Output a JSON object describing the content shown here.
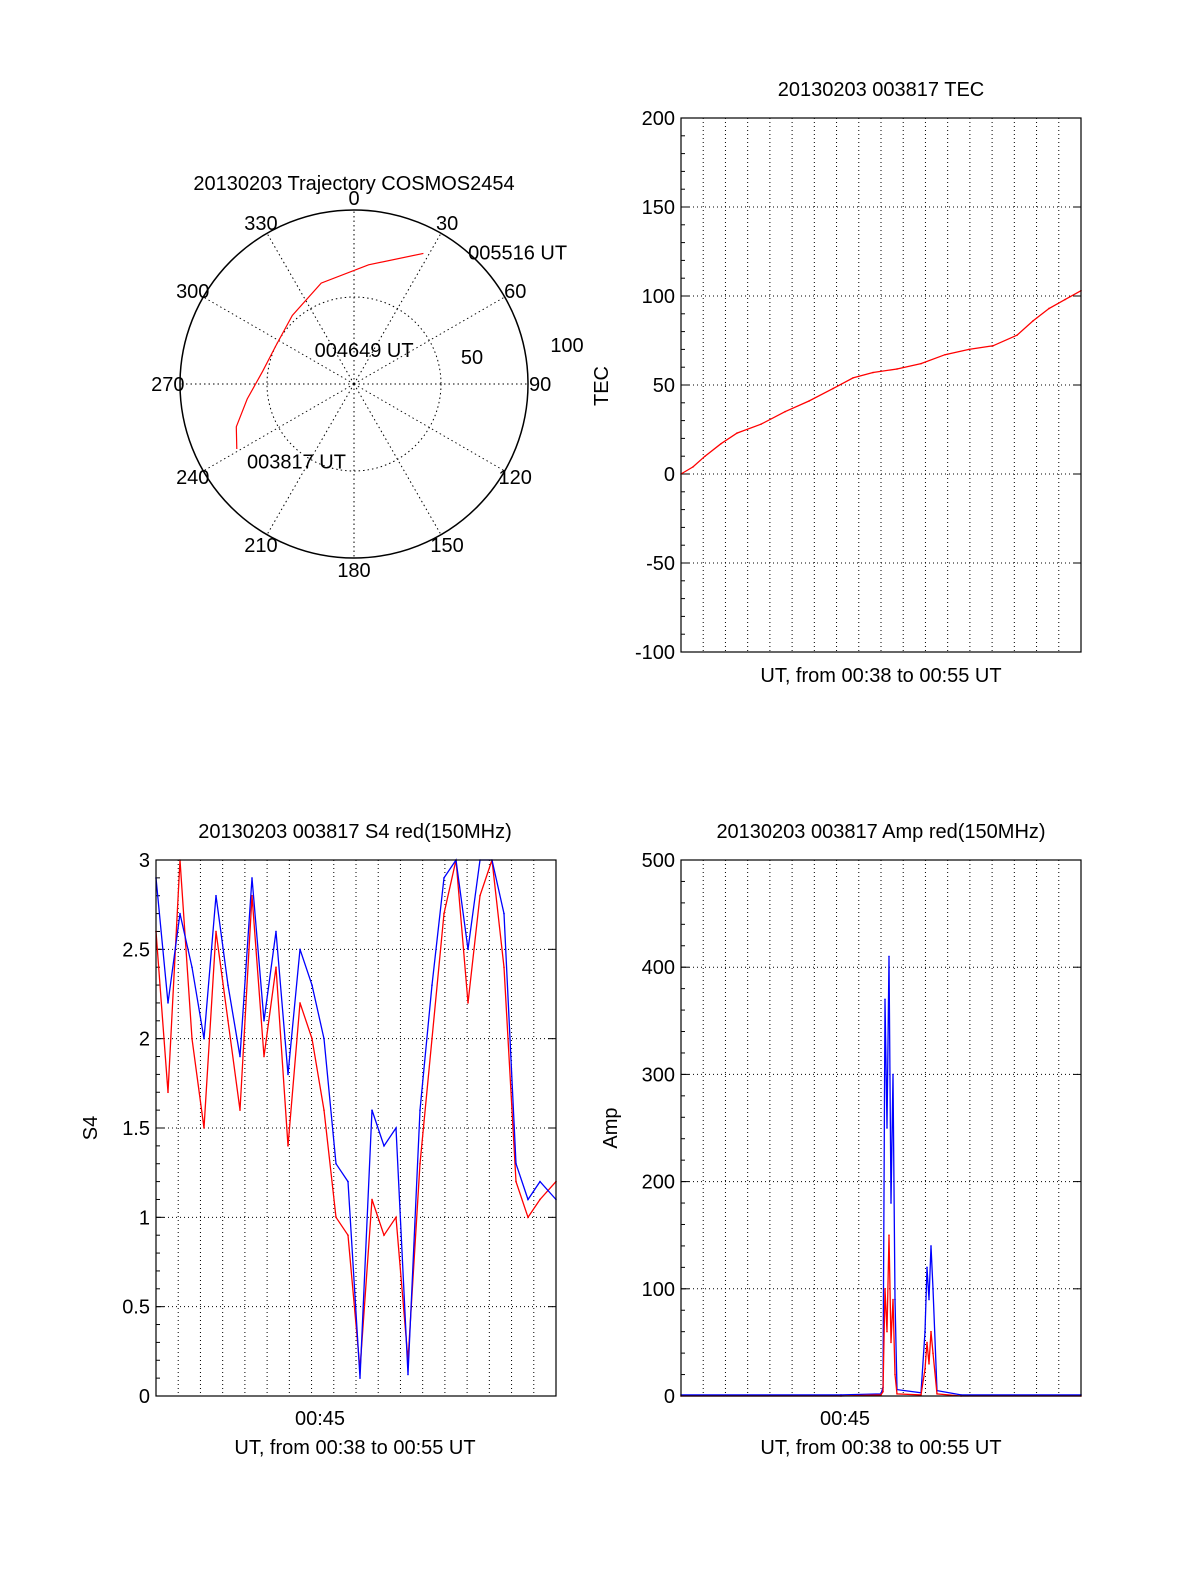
{
  "colors": {
    "red": "#ff0000",
    "blue": "#0000ff",
    "axis": "#000000",
    "grid": "#000000",
    "background": "#ffffff"
  },
  "chart_data": [
    {
      "id": "trajectory",
      "type": "polar",
      "title": "20130203 Trajectory COSMOS2454",
      "angle_labels": [
        "0",
        "30",
        "60",
        "90",
        "120",
        "150",
        "180",
        "210",
        "240",
        "270",
        "300",
        "330"
      ],
      "radial_labels": [
        "50",
        "100"
      ],
      "radial_max": 100,
      "series_color": "red",
      "track": {
        "azimuth_deg": [
          241,
          250,
          262,
          278,
          296,
          318,
          342,
          7,
          28
        ],
        "radius": [
          77,
          72,
          62,
          53,
          50,
          53,
          61,
          69,
          85
        ]
      },
      "annotations": [
        {
          "text": "003817 UT",
          "azimuth_deg": 234,
          "radius": 76
        },
        {
          "text": "004649 UT",
          "azimuth_deg": 311,
          "radius": 30
        },
        {
          "text": "005516 UT",
          "azimuth_deg": 41,
          "radius": 100
        }
      ]
    },
    {
      "id": "tec",
      "type": "line",
      "title": "20130203 003817 TEC",
      "xlabel": "UT, from 00:38 to 00:55 UT",
      "ylabel": "TEC",
      "ylim": [
        -100,
        200
      ],
      "yticks": [
        "-100",
        "-50",
        "0",
        "50",
        "100",
        "150",
        "200"
      ],
      "xticks": [],
      "grid": true,
      "series": [
        {
          "color": "red",
          "x": [
            0,
            0.03,
            0.06,
            0.1,
            0.14,
            0.2,
            0.26,
            0.32,
            0.38,
            0.43,
            0.48,
            0.54,
            0.6,
            0.66,
            0.72,
            0.78,
            0.84,
            0.88,
            0.92,
            0.96,
            1.0
          ],
          "values": [
            0,
            4,
            10,
            17,
            23,
            28,
            35,
            41,
            48,
            54,
            57,
            59,
            62,
            67,
            70,
            72,
            78,
            86,
            93,
            98,
            103
          ]
        }
      ]
    },
    {
      "id": "s4",
      "type": "line",
      "title": "20130203 003817 S4 red(150MHz)",
      "xlabel": "UT, from 00:38 to 00:55 UT",
      "ylabel": "S4",
      "ylim": [
        0,
        3
      ],
      "yticks": [
        "0",
        "0.5",
        "1",
        "1.5",
        "2",
        "2.5",
        "3"
      ],
      "xticks": [
        "00:45"
      ],
      "grid": true,
      "series": [
        {
          "color": "red",
          "x": [
            0,
            0.03,
            0.06,
            0.09,
            0.12,
            0.15,
            0.18,
            0.21,
            0.24,
            0.27,
            0.3,
            0.33,
            0.36,
            0.39,
            0.42,
            0.45,
            0.48,
            0.51,
            0.54,
            0.57,
            0.6,
            0.63,
            0.66,
            0.69,
            0.72,
            0.75,
            0.78,
            0.81,
            0.84,
            0.87,
            0.9,
            0.93,
            0.96,
            1.0
          ],
          "values": [
            2.6,
            1.7,
            3.0,
            2.0,
            1.5,
            2.6,
            2.1,
            1.6,
            2.8,
            1.9,
            2.4,
            1.4,
            2.2,
            2.0,
            1.6,
            1.0,
            0.9,
            0.15,
            1.1,
            0.9,
            1.0,
            0.2,
            1.3,
            2.0,
            2.7,
            3.0,
            2.2,
            2.8,
            3.0,
            2.4,
            1.2,
            1.0,
            1.1,
            1.2
          ]
        },
        {
          "color": "blue",
          "x": [
            0,
            0.03,
            0.06,
            0.09,
            0.12,
            0.15,
            0.18,
            0.21,
            0.24,
            0.27,
            0.3,
            0.33,
            0.36,
            0.39,
            0.42,
            0.45,
            0.48,
            0.51,
            0.54,
            0.57,
            0.6,
            0.63,
            0.66,
            0.69,
            0.72,
            0.75,
            0.78,
            0.81,
            0.84,
            0.87,
            0.9,
            0.93,
            0.96,
            1.0
          ],
          "values": [
            2.9,
            2.2,
            2.7,
            2.4,
            2.0,
            2.8,
            2.3,
            1.9,
            2.9,
            2.1,
            2.6,
            1.8,
            2.5,
            2.3,
            2.0,
            1.3,
            1.2,
            0.1,
            1.6,
            1.4,
            1.5,
            0.12,
            1.6,
            2.3,
            2.9,
            3.0,
            2.5,
            3.0,
            3.0,
            2.7,
            1.3,
            1.1,
            1.2,
            1.1
          ]
        }
      ]
    },
    {
      "id": "amp",
      "type": "line",
      "title": "20130203 003817 Amp red(150MHz)",
      "xlabel": "UT, from 00:38 to 00:55 UT",
      "ylabel": "Amp",
      "ylim": [
        0,
        500
      ],
      "yticks": [
        "0",
        "100",
        "200",
        "300",
        "400",
        "500"
      ],
      "xticks": [
        "00:45"
      ],
      "grid": true,
      "series": [
        {
          "color": "blue",
          "x": [
            0,
            0.4,
            0.5,
            0.505,
            0.51,
            0.515,
            0.52,
            0.525,
            0.53,
            0.535,
            0.54,
            0.6,
            0.61,
            0.615,
            0.62,
            0.625,
            0.63,
            0.64,
            0.7,
            1.0
          ],
          "values": [
            1,
            1,
            2,
            8,
            370,
            250,
            410,
            180,
            300,
            90,
            6,
            3,
            60,
            120,
            90,
            140,
            100,
            5,
            1,
            1
          ]
        },
        {
          "color": "red",
          "x": [
            0,
            0.4,
            0.5,
            0.505,
            0.51,
            0.515,
            0.52,
            0.525,
            0.53,
            0.535,
            0.54,
            0.6,
            0.61,
            0.615,
            0.62,
            0.625,
            0.63,
            0.64,
            0.7,
            1.0
          ],
          "values": [
            0,
            0,
            1,
            4,
            100,
            60,
            150,
            50,
            90,
            20,
            2,
            1,
            25,
            50,
            30,
            60,
            40,
            2,
            0,
            0
          ]
        }
      ]
    }
  ]
}
